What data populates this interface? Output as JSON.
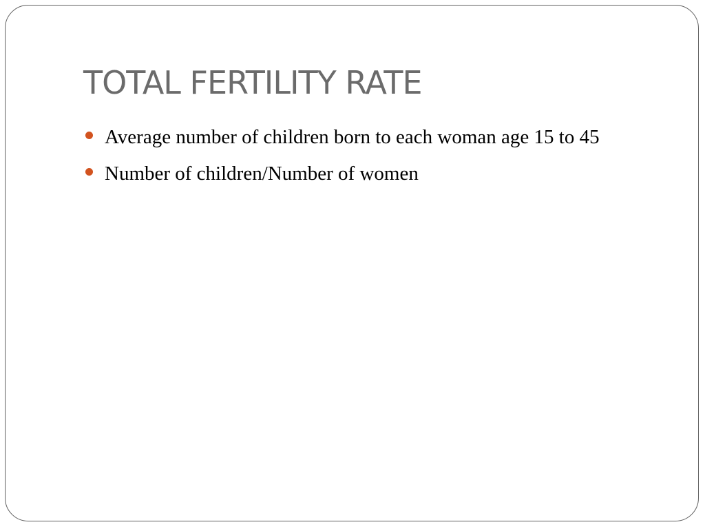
{
  "slide": {
    "title": "TOTAL FERTILITY RATE",
    "bullets": [
      "Average number of children born to each woman age 15 to 45",
      "Number of children/Number of women"
    ]
  },
  "colors": {
    "title": "#6b6b6b",
    "bullet_dot": "#d2531f",
    "frame_border": "#5f5f5f"
  },
  "icons": {
    "bullet": "filled-circle-bullet-icon"
  }
}
